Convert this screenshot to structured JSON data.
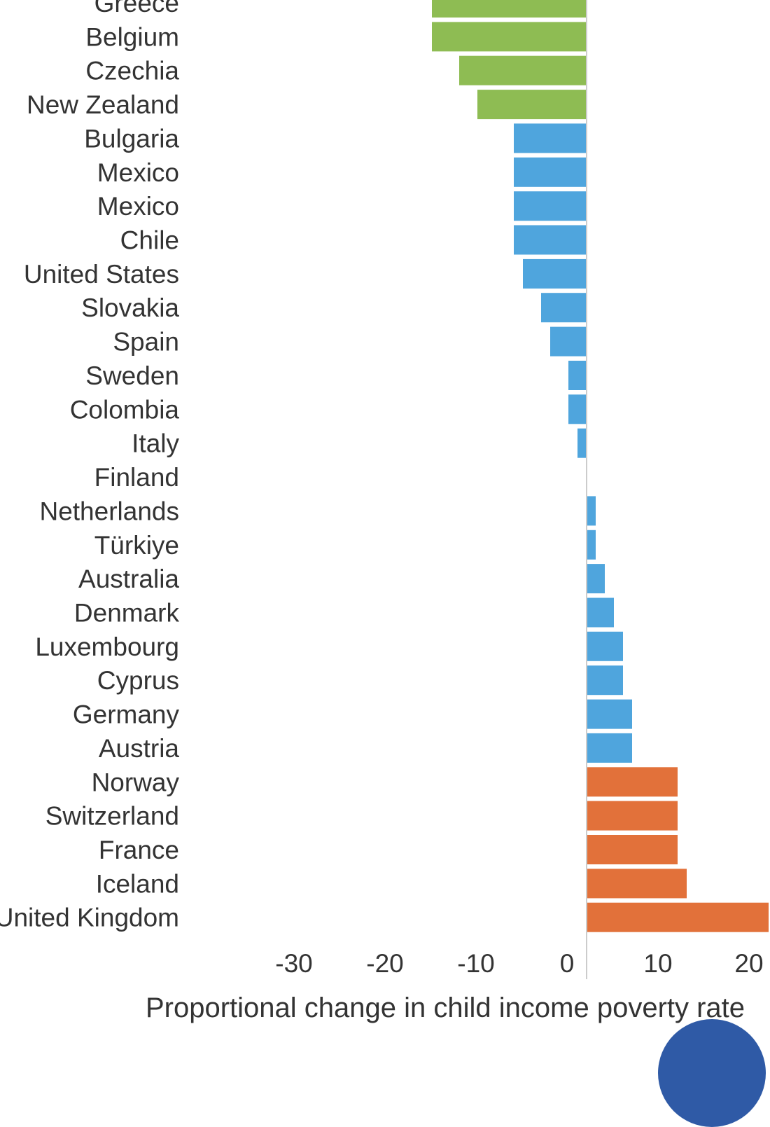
{
  "colors": {
    "green": "#8ebc53",
    "blue": "#4fa5dd",
    "orange": "#e2713a",
    "zero_line": "#cccccc",
    "text": "#333333"
  },
  "chart_data": {
    "type": "bar",
    "orientation": "horizontal",
    "xlabel": "Proportional change in child income poverty rate",
    "xlim": [
      -33.5,
      20.5
    ],
    "xticks": [
      -30,
      -20,
      -10,
      0,
      10,
      20
    ],
    "categories": [
      "Greece",
      "Belgium",
      "Czechia",
      "New Zealand",
      "Bulgaria",
      "Mexico",
      "Mexico",
      "Chile",
      "United States",
      "Slovakia",
      "Spain",
      "Sweden",
      "Colombia",
      "Italy",
      "Finland",
      "Netherlands",
      "Türkiye",
      "Australia",
      "Denmark",
      "Luxembourg",
      "Cyprus",
      "Germany",
      "Austria",
      "Norway",
      "Switzerland",
      "France",
      "Iceland",
      "United Kingdom"
    ],
    "values": [
      -17,
      -17,
      -14,
      -12,
      -8,
      -8,
      -8,
      -8,
      -7,
      -5,
      -4,
      -2,
      -2,
      -1,
      0,
      1,
      1,
      2,
      3,
      4,
      4,
      5,
      5,
      10,
      10,
      10,
      11,
      20
    ],
    "groups": [
      "green",
      "green",
      "green",
      "green",
      "blue",
      "blue",
      "blue",
      "blue",
      "blue",
      "blue",
      "blue",
      "blue",
      "blue",
      "blue",
      "blue",
      "blue",
      "blue",
      "blue",
      "blue",
      "blue",
      "blue",
      "blue",
      "blue",
      "orange",
      "orange",
      "orange",
      "orange",
      "orange"
    ]
  }
}
